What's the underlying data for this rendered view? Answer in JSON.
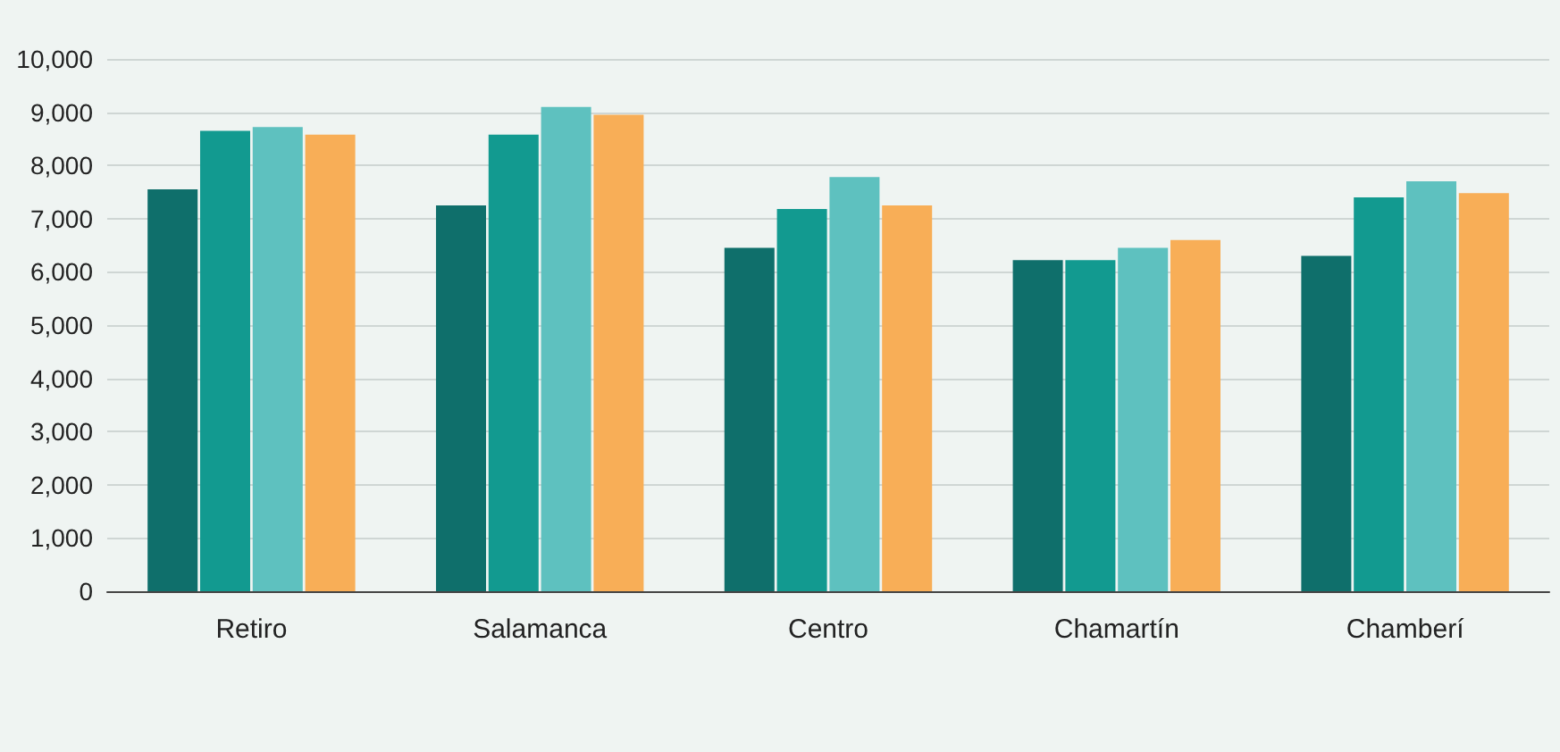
{
  "chart_data": {
    "type": "bar",
    "categories": [
      "Retiro",
      "Salamanca",
      "Centro",
      "Chamartín",
      "Chamberí"
    ],
    "series": [
      {
        "color": "#0f6f6b",
        "values": [
          7550,
          7250,
          6450,
          6220,
          6300
        ]
      },
      {
        "color": "#129a90",
        "values": [
          8650,
          8580,
          7180,
          6220,
          7400
        ]
      },
      {
        "color": "#5ec1bf",
        "values": [
          8720,
          9100,
          7780,
          6450,
          7700
        ]
      },
      {
        "color": "#f8ae57",
        "values": [
          8580,
          8950,
          7250,
          6600,
          7480
        ]
      }
    ],
    "ylim": [
      0,
      10000
    ],
    "yticks": [
      0,
      {
        "value": 1000,
        "label": "1,000"
      },
      {
        "value": 2000,
        "label": "2,000"
      },
      {
        "value": 3000,
        "label": "3,000"
      },
      {
        "value": 4000,
        "label": "4,000"
      },
      {
        "value": 5000,
        "label": "5,000"
      },
      {
        "value": 6000,
        "label": "6,000"
      },
      {
        "value": 7000,
        "label": "7,000"
      },
      {
        "value": 8000,
        "label": "8,000"
      },
      {
        "value": 9000,
        "label": "9,000"
      },
      {
        "value": 10000,
        "label": "10,000"
      }
    ],
    "grid": "y"
  }
}
